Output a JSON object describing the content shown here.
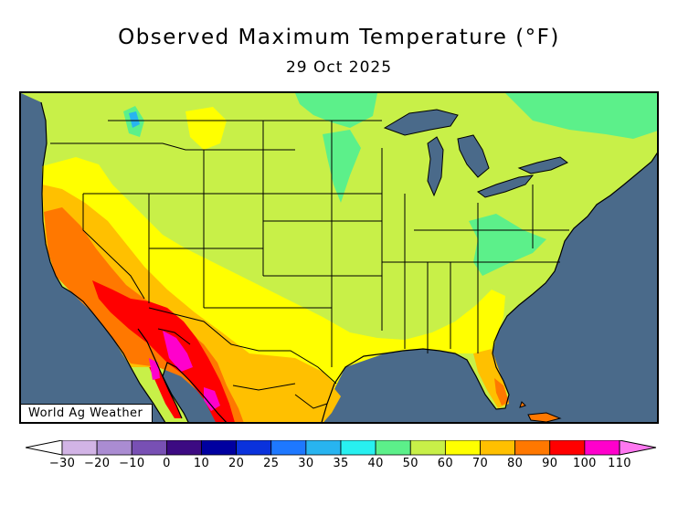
{
  "title": "Observed Maximum Temperature (°F)",
  "date": "29 Oct 2025",
  "credit": "World Ag Weather",
  "colors": {
    "ocean": "#4a6a8a",
    "land_base": "#c8f048",
    "t50": "#5cf08a",
    "t60": "#c8f048",
    "t70": "#ffff00",
    "t80": "#ffc000",
    "t90": "#ff7800",
    "t100": "#ff0000",
    "t110": "#ff00cc"
  },
  "legend": {
    "ticks": [
      "-30",
      "-20",
      "-10",
      "0",
      "10",
      "20",
      "25",
      "30",
      "35",
      "40",
      "50",
      "60",
      "70",
      "80",
      "90",
      "100",
      "110"
    ],
    "colors": [
      "#ffffff",
      "#d2b4e6",
      "#aa8cd2",
      "#7850b4",
      "#3c0a82",
      "#0000a0",
      "#0a32dc",
      "#1e78ff",
      "#28b4f0",
      "#28f0f0",
      "#5cf08a",
      "#c8f048",
      "#ffff00",
      "#ffc000",
      "#ff7800",
      "#ff0000",
      "#ff00cc",
      "#ff78f0"
    ]
  }
}
